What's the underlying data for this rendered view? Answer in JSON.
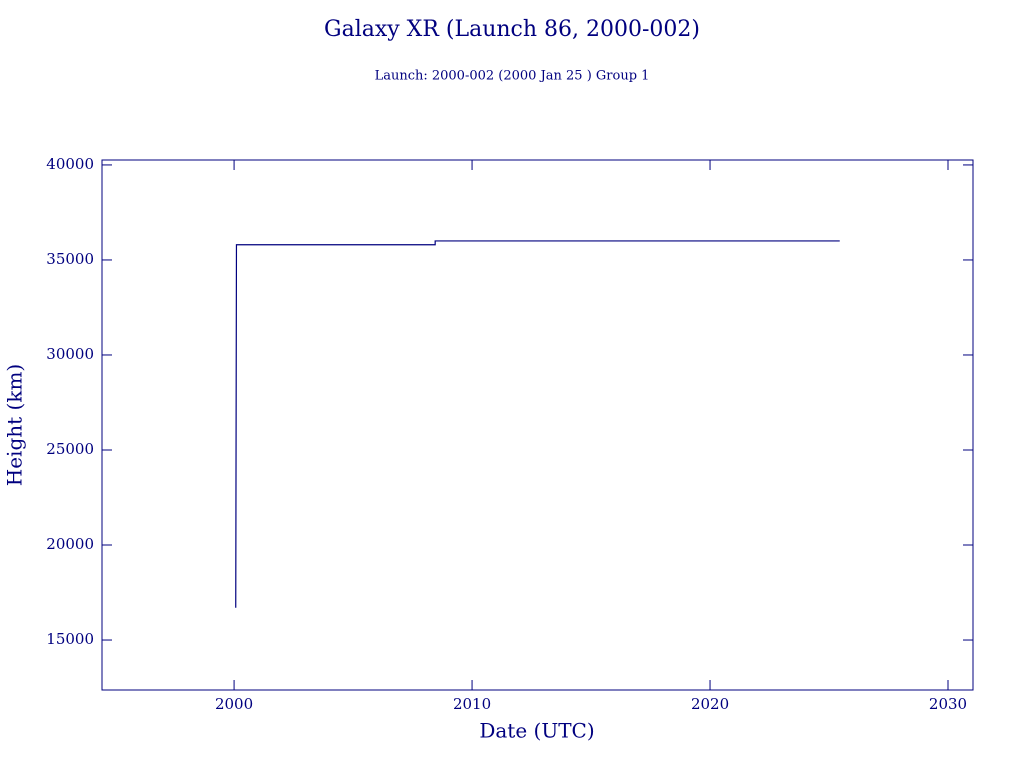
{
  "chart_data": {
    "type": "line",
    "title": "Galaxy XR (Launch 86, 2000-002)",
    "subtitle": "Launch: 2000-002  (2000 Jan 25 )  Group 1",
    "x_label": "Date (UTC)",
    "y_label": "Height (km)",
    "x": [
      2000.07,
      2000.1,
      2008.45,
      2008.45,
      2025.45
    ],
    "values": [
      16700,
      35800,
      35800,
      36000,
      36000
    ],
    "color": "#00007f",
    "xlim": [
      1994.45,
      2031.05
    ],
    "ylim": [
      12370,
      40260
    ],
    "xticks": [
      2000,
      2010,
      2020,
      2030
    ],
    "yticks": [
      15000,
      20000,
      25000,
      30000,
      35000,
      40000
    ]
  }
}
